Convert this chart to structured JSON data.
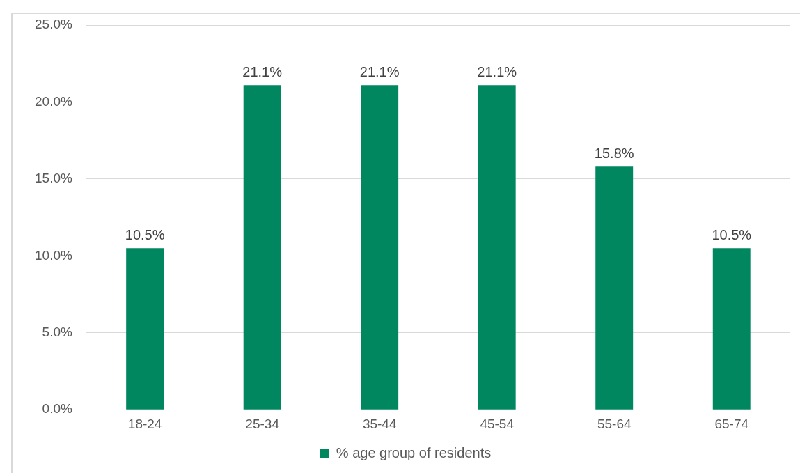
{
  "chart_data": {
    "type": "bar",
    "categories": [
      "18-24",
      "25-34",
      "35-44",
      "45-54",
      "55-64",
      "65-74"
    ],
    "series": [
      {
        "name": "% age group of residents",
        "color": "#00875f",
        "values": [
          10.5,
          21.1,
          21.1,
          21.1,
          15.8,
          10.5
        ]
      }
    ],
    "value_labels": [
      "10.5%",
      "21.1%",
      "21.1%",
      "21.1%",
      "15.8%",
      "10.5%"
    ],
    "ylim": [
      0,
      25
    ],
    "yticks": [
      {
        "value": 0,
        "label": "0.0%"
      },
      {
        "value": 5,
        "label": "5.0%"
      },
      {
        "value": 10,
        "label": "10.0%"
      },
      {
        "value": 15,
        "label": "15.0%"
      },
      {
        "value": 20,
        "label": "20.0%"
      },
      {
        "value": 25,
        "label": "25.0%"
      }
    ],
    "grid": "y",
    "legend": "bottom"
  }
}
